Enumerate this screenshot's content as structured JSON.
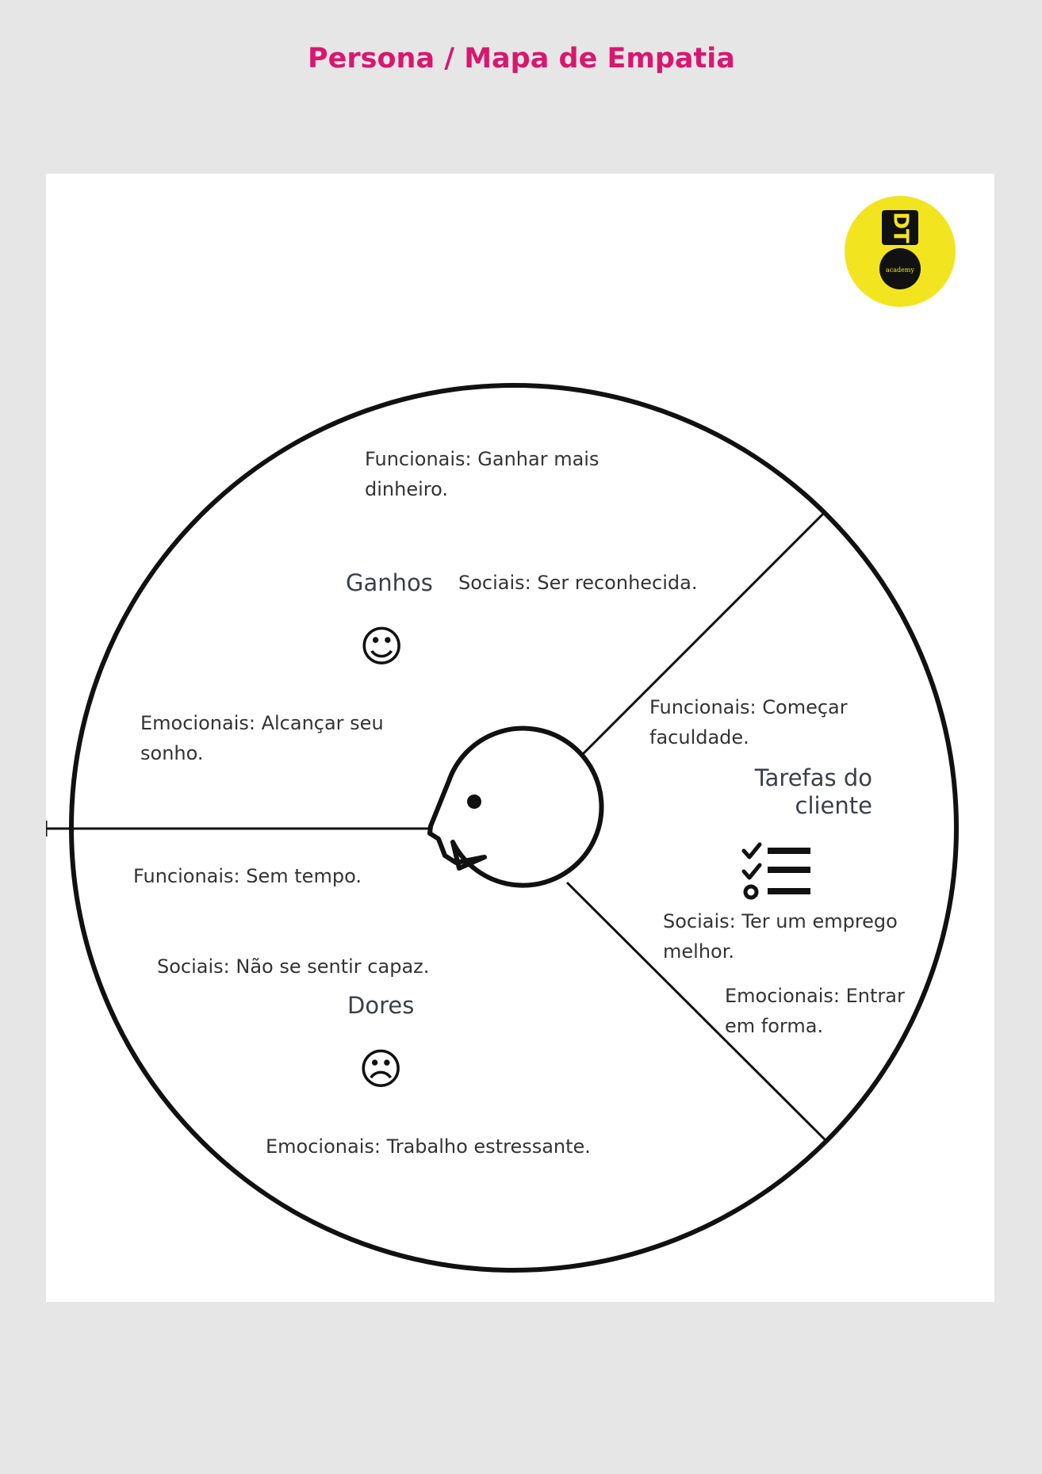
{
  "title": "Persona / Mapa de Empatia",
  "logo": {
    "text_main": "DT",
    "text_sub": "academy",
    "bg_color": "#f2e41f"
  },
  "colors": {
    "title": "#d8176f",
    "page_bg": "#e6e6e6",
    "canvas_bg": "#ffffff"
  },
  "sections": {
    "ganhos": {
      "heading": "Ganhos",
      "icon": "smiley-face-icon",
      "funcionais": "Funcionais: Ganhar mais dinheiro.",
      "sociais": "Sociais: Ser reconhecida.",
      "emocionais": "Emocionais: Alcançar seu sonho."
    },
    "dores": {
      "heading": "Dores",
      "icon": "sad-face-icon",
      "funcionais": "Funcionais: Sem tempo.",
      "sociais": "Sociais: Não se sentir capaz.",
      "emocionais": "Emocionais: Trabalho estressante."
    },
    "tarefas": {
      "heading": "Tarefas do cliente",
      "icon": "checklist-icon",
      "funcionais": "Funcionais: Começar faculdade.",
      "sociais": "Sociais: Ter um emprego melhor.",
      "emocionais": "Emocionais: Entrar em forma."
    }
  }
}
